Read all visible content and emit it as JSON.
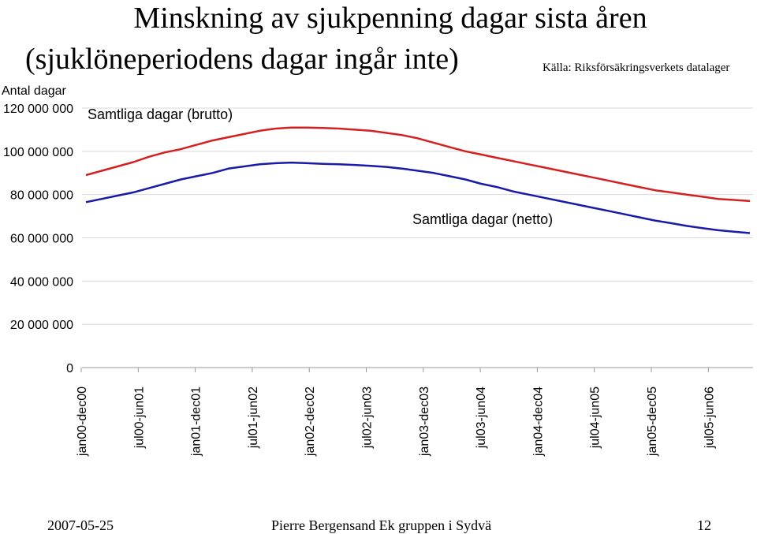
{
  "header": {
    "title_line1": "Minskning av sjukpenning dagar sista åren",
    "title_line2": "(sjuklöneperiodens dagar ingår inte)",
    "source": "Källa: Riksförsäkringsverkets datalager"
  },
  "footer": {
    "date": "2007-05-25",
    "author": "Pierre Bergensand Ek gruppen i Sydvä",
    "page_number": "12"
  },
  "chart_data": {
    "type": "line",
    "title": "Minskning av sjukpenning dagar sista åren (sjuklöneperiodens dagar ingår inte)",
    "ylabel": "Antal dagar",
    "ylim": [
      0,
      120000000
    ],
    "y_ticks": [
      0,
      20000000,
      40000000,
      60000000,
      80000000,
      100000000,
      120000000
    ],
    "y_tick_labels": [
      "0",
      "20 000 000",
      "40 000 000",
      "60 000 000",
      "80 000 000",
      "100 000 000",
      "120 000 000"
    ],
    "x_tick_labels": [
      "jan00-dec00",
      "jul00-jun01",
      "jan01-dec01",
      "jul01-jun02",
      "jan02-dec02",
      "jul02-jun03",
      "jan03-dec03",
      "jul03-jun04",
      "jan04-dec04",
      "jul04-jun05",
      "jan05-dec05",
      "jul05-jun06"
    ],
    "grid": "horizontal",
    "series": [
      {
        "name": "Samtliga dagar (brutto)",
        "color": "#d42020",
        "values": [
          89000000,
          91000000,
          93000000,
          95000000,
          97500000,
          99500000,
          101000000,
          103000000,
          105000000,
          106500000,
          108000000,
          109500000,
          110500000,
          111000000,
          111000000,
          110800000,
          110500000,
          110000000,
          109500000,
          108500000,
          107500000,
          106000000,
          104000000,
          102000000,
          100000000,
          98500000,
          97000000,
          95500000,
          94000000,
          92500000,
          91000000,
          89500000,
          88000000,
          86500000,
          85000000,
          83500000,
          82000000,
          81000000,
          80000000,
          79000000,
          78000000,
          77500000,
          77000000
        ]
      },
      {
        "name": "Samtliga dagar (netto)",
        "color": "#1a1aa8",
        "values": [
          76500000,
          78000000,
          79500000,
          81000000,
          83000000,
          85000000,
          87000000,
          88500000,
          90000000,
          92000000,
          93000000,
          94000000,
          94500000,
          94800000,
          94500000,
          94200000,
          94000000,
          93700000,
          93300000,
          92800000,
          92000000,
          91000000,
          90000000,
          88500000,
          87000000,
          85000000,
          83500000,
          81500000,
          80000000,
          78500000,
          77000000,
          75500000,
          74000000,
          72500000,
          71000000,
          69500000,
          68000000,
          66800000,
          65500000,
          64500000,
          63500000,
          62800000,
          62200000
        ]
      }
    ],
    "annotations": [
      {
        "text": "Samtliga dagar (brutto)"
      },
      {
        "text": "Samtliga dagar (netto)"
      }
    ]
  }
}
